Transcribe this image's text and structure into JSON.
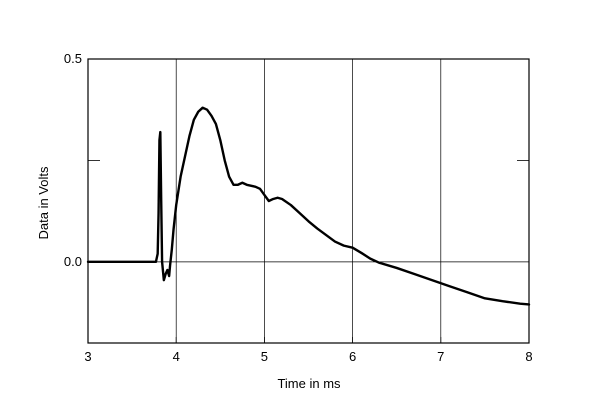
{
  "chart_data": {
    "type": "line",
    "title": "",
    "xlabel": "Time in ms",
    "ylabel": "Data in Volts",
    "xlim": [
      3,
      8
    ],
    "ylim": [
      -0.2,
      0.5
    ],
    "x_ticks": [
      3,
      4,
      5,
      6,
      7,
      8
    ],
    "x_tick_labels": [
      "3",
      "4",
      "5",
      "6",
      "7",
      "8"
    ],
    "y_ticks": [
      0.5,
      0.0
    ],
    "y_tick_labels": [
      "0.5",
      "0.0"
    ],
    "y_grid": [
      0.5,
      0.25,
      0.0,
      -0.2
    ],
    "grid": true,
    "legend": "none",
    "line_color": "#000000",
    "series": [
      {
        "x": [
          3.0,
          3.5,
          3.77,
          3.79,
          3.8,
          3.81,
          3.82,
          3.83,
          3.84,
          3.86,
          3.88,
          3.9,
          3.92,
          3.93,
          3.94,
          3.95,
          3.97,
          4.0,
          4.05,
          4.1,
          4.15,
          4.2,
          4.25,
          4.3,
          4.35,
          4.4,
          4.45,
          4.5,
          4.55,
          4.6,
          4.65,
          4.7,
          4.75,
          4.8,
          4.9,
          4.95,
          5.0,
          5.05,
          5.1,
          5.15,
          5.2,
          5.3,
          5.4,
          5.5,
          5.6,
          5.7,
          5.8,
          5.9,
          6.0,
          6.1,
          6.2,
          6.3,
          6.5,
          6.7,
          6.9,
          7.1,
          7.3,
          7.5,
          7.7,
          7.9,
          8.0
        ],
        "y": [
          0.0,
          0.0,
          0.0,
          0.02,
          0.12,
          0.3,
          0.32,
          0.15,
          0.0,
          -0.045,
          -0.03,
          -0.02,
          -0.035,
          -0.01,
          0.01,
          0.03,
          0.08,
          0.14,
          0.21,
          0.26,
          0.31,
          0.35,
          0.37,
          0.38,
          0.375,
          0.36,
          0.34,
          0.3,
          0.25,
          0.21,
          0.19,
          0.19,
          0.195,
          0.19,
          0.185,
          0.18,
          0.165,
          0.15,
          0.155,
          0.158,
          0.155,
          0.14,
          0.12,
          0.1,
          0.082,
          0.066,
          0.05,
          0.04,
          0.035,
          0.022,
          0.008,
          -0.002,
          -0.015,
          -0.03,
          -0.045,
          -0.06,
          -0.075,
          -0.09,
          -0.097,
          -0.103,
          -0.105
        ]
      }
    ]
  }
}
